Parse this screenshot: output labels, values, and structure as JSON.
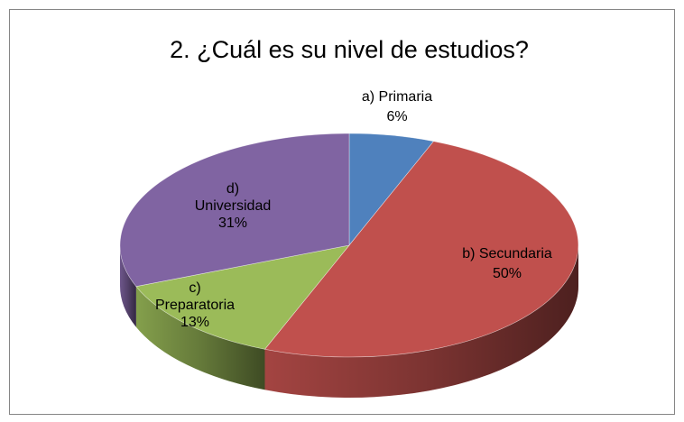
{
  "chart_data": {
    "type": "pie",
    "title": "2. ¿Cuál es su nivel de estudios?",
    "categories": [
      "a) Primaria",
      "b) Secundaria",
      "c) Preparatoria",
      "d) Universidad"
    ],
    "values": [
      6,
      50,
      13,
      31
    ],
    "value_labels": [
      "6%",
      "50%",
      "13%",
      "31%"
    ],
    "colors": [
      "#4f81bd",
      "#c0504d",
      "#9bbb59",
      "#8064a2"
    ],
    "three_d": true
  }
}
